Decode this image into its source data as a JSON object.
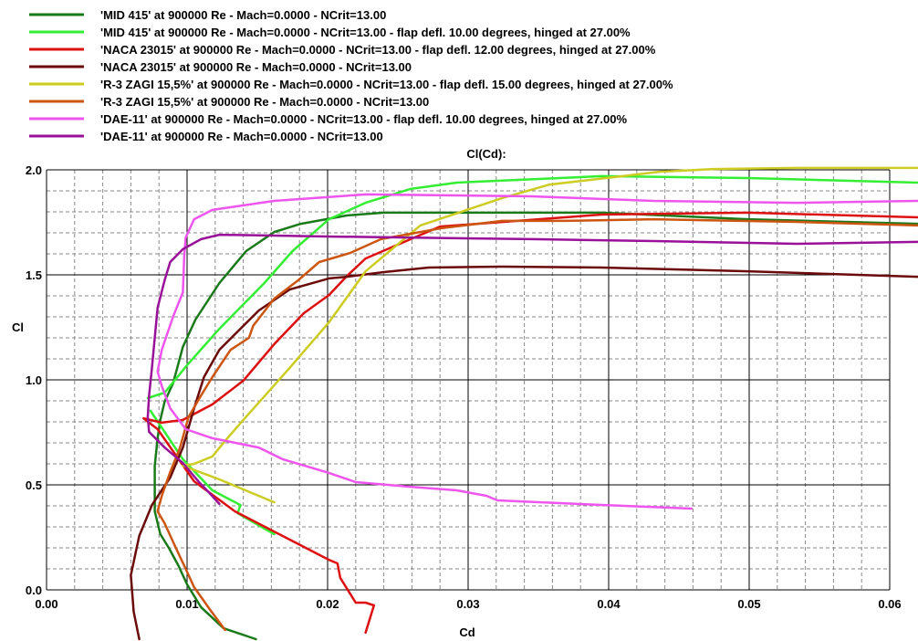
{
  "chart_data": {
    "type": "line",
    "title": "Cl(Cd):",
    "xlabel": "Cd",
    "ylabel": "Cl",
    "xlim": [
      0,
      0.06
    ],
    "ylim": [
      0,
      2.0
    ],
    "xticks": [
      "0.00",
      "0.01",
      "0.02",
      "0.03",
      "0.04",
      "0.05",
      "0.06"
    ],
    "yticks": [
      "0.0",
      "0.5",
      "1.0",
      "1.5",
      "2.0"
    ],
    "grid": true,
    "legend_position": "top-left",
    "series": [
      {
        "name": "'MID 415' at 900000 Re - Mach=0.0000 - NCrit=13.00",
        "color": "#1a7a1a",
        "points": [
          [
            0.062,
            1.743
          ],
          [
            0.0499,
            1.765
          ],
          [
            0.0395,
            1.796
          ],
          [
            0.0292,
            1.796
          ],
          [
            0.024,
            1.796
          ],
          [
            0.0214,
            1.783
          ],
          [
            0.0181,
            1.743
          ],
          [
            0.0162,
            1.704
          ],
          [
            0.0142,
            1.613
          ],
          [
            0.0123,
            1.461
          ],
          [
            0.0106,
            1.287
          ],
          [
            0.0097,
            1.157
          ],
          [
            0.009,
            0.983
          ],
          [
            0.0084,
            0.896
          ],
          [
            0.0081,
            0.809
          ],
          [
            0.0079,
            0.722
          ],
          [
            0.0077,
            0.591
          ],
          [
            0.0077,
            0.461
          ],
          [
            0.0077,
            0.374
          ],
          [
            0.0081,
            0.265
          ],
          [
            0.0087,
            0.2
          ],
          [
            0.0094,
            0.113
          ],
          [
            0.01,
            0.026
          ],
          [
            0.011,
            -0.083
          ],
          [
            0.0126,
            -0.183
          ],
          [
            0.0149,
            -0.235
          ]
        ]
      },
      {
        "name": "'MID 415' at 900000 Re - Mach=0.0000 - NCrit=13.00 - flap defl. 10.00 degrees, hinged at 27.00%",
        "color": "#33ee33",
        "points": [
          [
            0.062,
            1.939
          ],
          [
            0.0499,
            1.961
          ],
          [
            0.0395,
            1.97
          ],
          [
            0.0292,
            1.939
          ],
          [
            0.0259,
            1.909
          ],
          [
            0.0227,
            1.843
          ],
          [
            0.0201,
            1.765
          ],
          [
            0.0175,
            1.613
          ],
          [
            0.0155,
            1.461
          ],
          [
            0.0123,
            1.243
          ],
          [
            0.01,
            1.07
          ],
          [
            0.0084,
            0.939
          ],
          [
            0.0072,
            0.913
          ],
          null,
          [
            0.0074,
            0.852
          ],
          [
            0.0097,
            0.622
          ],
          [
            0.0118,
            0.474
          ],
          [
            0.0138,
            0.404
          ],
          [
            0.0136,
            0.365
          ],
          [
            0.0162,
            0.265
          ]
        ]
      },
      {
        "name": "'NACA 23015' at 900000 Re - Mach=0.0000 - NCrit=13.00 - flap defl. 12.00 degrees, hinged at 27.00%",
        "color": "#dd1111",
        "points": [
          [
            0.062,
            1.774
          ],
          [
            0.0499,
            1.796
          ],
          [
            0.0395,
            1.787
          ],
          [
            0.028,
            1.73
          ],
          [
            0.0227,
            1.578
          ],
          [
            0.0214,
            1.496
          ],
          [
            0.0201,
            1.404
          ],
          [
            0.0183,
            1.317
          ],
          [
            0.0162,
            1.17
          ],
          [
            0.014,
            0.996
          ],
          [
            0.0118,
            0.883
          ],
          [
            0.0097,
            0.809
          ],
          [
            0.0082,
            0.796
          ],
          [
            0.0069,
            0.817
          ],
          [
            0.0079,
            0.765
          ],
          [
            0.0105,
            0.517
          ],
          [
            0.0134,
            0.374
          ],
          [
            0.0201,
            0.143
          ],
          [
            0.0207,
            0.126
          ],
          [
            0.0209,
            0.057
          ],
          [
            0.022,
            -0.061
          ],
          [
            0.0227,
            -0.061
          ],
          [
            0.0233,
            -0.074
          ],
          [
            0.0227,
            -0.204
          ]
        ]
      },
      {
        "name": "'NACA 23015' at 900000 Re - Mach=0.0000 - NCrit=13.00",
        "color": "#6b0a0a",
        "points": [
          [
            0.062,
            1.491
          ],
          [
            0.0499,
            1.517
          ],
          [
            0.0395,
            1.535
          ],
          [
            0.0324,
            1.539
          ],
          [
            0.0272,
            1.535
          ],
          [
            0.024,
            1.513
          ],
          [
            0.0214,
            1.491
          ],
          [
            0.0201,
            1.483
          ],
          [
            0.0173,
            1.43
          ],
          [
            0.0151,
            1.33
          ],
          [
            0.0136,
            1.23
          ],
          [
            0.0123,
            1.143
          ],
          [
            0.0112,
            1.013
          ],
          [
            0.0105,
            0.865
          ],
          [
            0.0097,
            0.678
          ],
          [
            0.0088,
            0.535
          ],
          [
            0.0075,
            0.404
          ],
          [
            0.0066,
            0.257
          ],
          [
            0.006,
            0.07
          ],
          [
            0.0062,
            -0.104
          ],
          [
            0.0066,
            -0.235
          ]
        ]
      },
      {
        "name": "'R-3 ZAGI 15,5%' at 900000 Re - Mach=0.0000 - NCrit=13.00 - flap defl. 15.00 degrees, hinged at 27.00%",
        "color": "#cccc22",
        "points": [
          [
            0.062,
            2.009
          ],
          [
            0.0534,
            2.009
          ],
          [
            0.0475,
            2.004
          ],
          [
            0.0436,
            1.991
          ],
          [
            0.041,
            1.97
          ],
          [
            0.0358,
            1.93
          ],
          [
            0.0324,
            1.865
          ],
          [
            0.0266,
            1.735
          ],
          [
            0.0227,
            1.517
          ],
          [
            0.0201,
            1.274
          ],
          [
            0.0173,
            1.057
          ],
          [
            0.014,
            0.809
          ],
          [
            0.0127,
            0.709
          ],
          [
            0.0118,
            0.635
          ],
          [
            0.0105,
            0.6
          ],
          [
            0.0097,
            0.591
          ],
          [
            0.0123,
            0.526
          ],
          [
            0.0162,
            0.417
          ]
        ]
      },
      {
        "name": "'R-3 ZAGI 15,5%' at 900000 Re - Mach=0.0000 - NCrit=13.00",
        "color": "#cc5511",
        "points": [
          [
            0.062,
            1.735
          ],
          [
            0.0534,
            1.752
          ],
          [
            0.0432,
            1.765
          ],
          [
            0.0368,
            1.757
          ],
          [
            0.0324,
            1.757
          ],
          [
            0.0281,
            1.722
          ],
          [
            0.0238,
            1.67
          ],
          [
            0.0216,
            1.604
          ],
          [
            0.0194,
            1.561
          ],
          [
            0.0179,
            1.474
          ],
          [
            0.0162,
            1.387
          ],
          [
            0.0147,
            1.257
          ],
          [
            0.0144,
            1.2
          ],
          [
            0.0131,
            1.143
          ],
          [
            0.0118,
            1.013
          ],
          [
            0.011,
            0.926
          ],
          [
            0.0101,
            0.822
          ],
          [
            0.0095,
            0.678
          ],
          [
            0.0088,
            0.561
          ],
          [
            0.0082,
            0.448
          ],
          [
            0.0079,
            0.374
          ],
          [
            0.0084,
            0.317
          ],
          [
            0.0092,
            0.2
          ],
          [
            0.0099,
            0.1
          ],
          [
            0.0105,
            0.013
          ],
          [
            0.0116,
            -0.091
          ],
          [
            0.0127,
            -0.191
          ]
        ]
      },
      {
        "name": "'DAE-11' at 900000 Re - Mach=0.0000 - NCrit=13.00 - flap defl. 10.00 degrees, hinged at 27.00%",
        "color": "#ee55ee",
        "points": [
          [
            0.062,
            1.852
          ],
          [
            0.0534,
            1.843
          ],
          [
            0.0432,
            1.852
          ],
          [
            0.0345,
            1.874
          ],
          [
            0.0227,
            1.883
          ],
          [
            0.0162,
            1.852
          ],
          [
            0.0118,
            1.809
          ],
          [
            0.0105,
            1.765
          ],
          [
            0.0099,
            1.678
          ],
          [
            0.0098,
            1.591
          ],
          [
            0.0097,
            1.417
          ],
          [
            0.009,
            1.3
          ],
          [
            0.0082,
            1.143
          ],
          [
            0.0079,
            1.04
          ],
          [
            0.0082,
            0.97
          ],
          [
            0.0088,
            0.865
          ],
          [
            0.0099,
            0.765
          ],
          [
            0.0118,
            0.722
          ],
          [
            0.0151,
            0.678
          ],
          [
            0.0168,
            0.622
          ],
          [
            0.0201,
            0.557
          ],
          [
            0.022,
            0.513
          ],
          [
            0.0259,
            0.491
          ],
          [
            0.0292,
            0.474
          ],
          [
            0.0313,
            0.448
          ],
          [
            0.0321,
            0.426
          ],
          [
            0.0378,
            0.409
          ],
          [
            0.0459,
            0.387
          ]
        ]
      },
      {
        "name": "'DAE-11' at 900000 Re - Mach=0.0000 - NCrit=13.00",
        "color": "#991199",
        "points": [
          [
            0.062,
            1.657
          ],
          [
            0.0534,
            1.648
          ],
          [
            0.0432,
            1.661
          ],
          [
            0.0345,
            1.67
          ],
          [
            0.0194,
            1.683
          ],
          [
            0.0162,
            1.687
          ],
          [
            0.0123,
            1.691
          ],
          [
            0.011,
            1.67
          ],
          [
            0.0097,
            1.622
          ],
          [
            0.0088,
            1.561
          ],
          [
            0.0084,
            1.474
          ],
          [
            0.0079,
            1.343
          ],
          [
            0.0077,
            1.2
          ],
          [
            0.0075,
            1.057
          ],
          [
            0.0073,
            0.926
          ],
          [
            0.0072,
            0.822
          ],
          [
            0.0073,
            0.752
          ],
          [
            0.0084,
            0.678
          ],
          [
            0.0097,
            0.604
          ],
          [
            0.0108,
            0.517
          ],
          [
            0.0116,
            0.461
          ],
          [
            0.0123,
            0.409
          ]
        ]
      }
    ]
  }
}
